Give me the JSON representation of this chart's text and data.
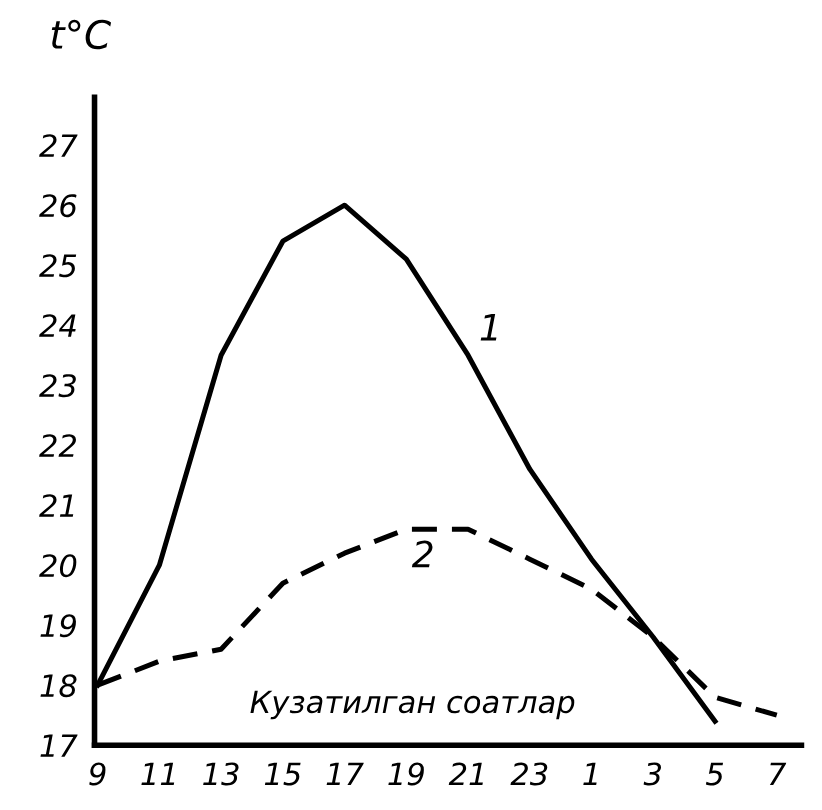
{
  "chart_data": {
    "type": "line",
    "xlabel": "Кузатилган соатлар",
    "ylabel": "t°C",
    "categories": [
      "9",
      "11",
      "13",
      "15",
      "17",
      "19",
      "21",
      "23",
      "1",
      "3",
      "5",
      "7"
    ],
    "series": [
      {
        "color": "#000000",
        "line_style": "solid",
        "values": [
          18.0,
          20.0,
          23.5,
          25.4,
          26.0,
          25.1,
          23.5,
          21.6,
          20.1,
          18.8,
          17.4,
          null
        ]
      },
      {
        "color": "#000000",
        "line_style": "dashed",
        "values": [
          18.0,
          18.4,
          18.6,
          19.7,
          20.2,
          20.6,
          20.6,
          20.1,
          19.6,
          18.8,
          17.8,
          17.5
        ]
      }
    ],
    "annotations": [
      "1",
      "2"
    ],
    "ylim": [
      17,
      27.8
    ],
    "yticks": [
      17,
      18,
      19,
      20,
      21,
      22,
      23,
      24,
      25,
      26,
      27
    ],
    "grid": false,
    "legend": false,
    "marker": "none"
  }
}
